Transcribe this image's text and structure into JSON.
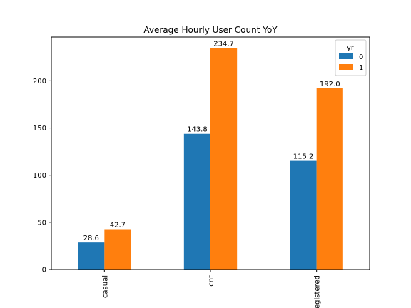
{
  "chart_data": {
    "type": "bar",
    "title": "Average Hourly User Count YoY",
    "xlabel": "",
    "ylabel": "",
    "categories": [
      "casual",
      "cnt",
      "registered"
    ],
    "series": [
      {
        "name": "0",
        "values": [
          28.6,
          143.8,
          115.2
        ],
        "color": "#1f77b4"
      },
      {
        "name": "1",
        "values": [
          42.7,
          234.7,
          192.0
        ],
        "color": "#ff7f0e"
      }
    ],
    "data_labels": [
      [
        "28.6",
        "143.8",
        "115.2"
      ],
      [
        "42.7",
        "234.7",
        "192.0"
      ]
    ],
    "ylim": [
      0,
      246.4
    ],
    "yticks": [
      0,
      50,
      100,
      150,
      200
    ],
    "legend": {
      "title": "yr",
      "position": "top-right"
    },
    "grid": false
  }
}
